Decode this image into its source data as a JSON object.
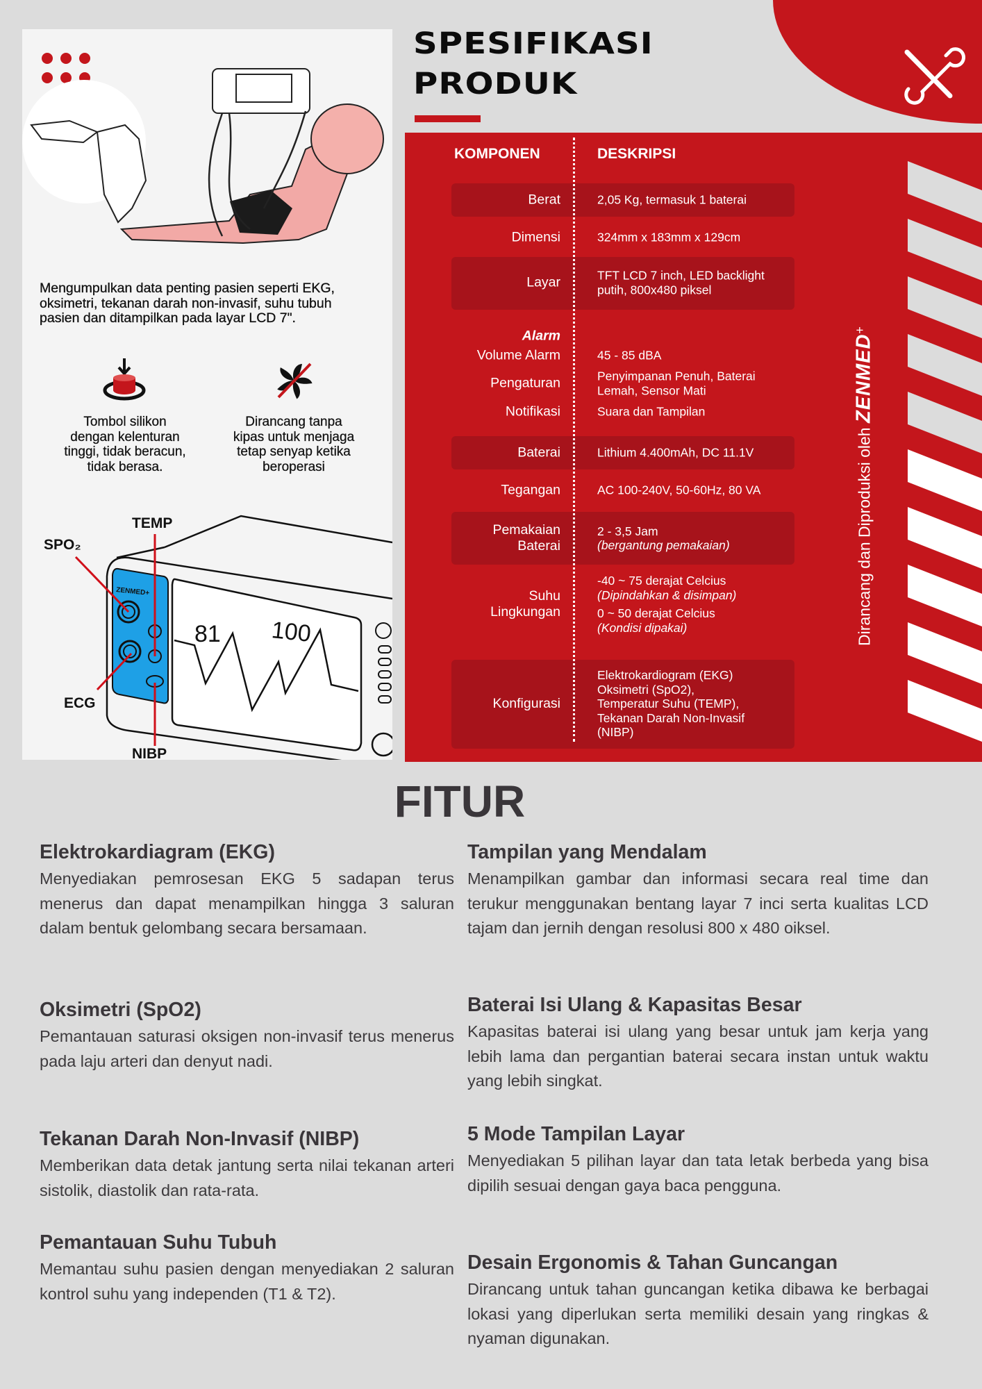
{
  "left_panel": {
    "intro": "Mengumpulkan data penting pasien seperti EKG, oksimetri, tekanan darah non-invasif, suhu tubuh pasien dan ditampilkan pada layar LCD 7\".",
    "highlights": [
      {
        "icon": "silicone-button-icon",
        "label": "Tombol silikon\ndengan kelenturan\ntinggi, tidak beracun,\ntidak berasa."
      },
      {
        "icon": "no-fan-icon",
        "label": "Dirancang tanpa\nkipas untuk menjaga\ntetap senyap ketika\nberoperasi"
      }
    ],
    "diagram": {
      "labels": {
        "temp": "TEMP",
        "spo2": "SPO₂",
        "ecg": "ECG",
        "nibp": "NIBP"
      },
      "brand": "ZENMED+",
      "screen_values": [
        "81",
        "100"
      ]
    }
  },
  "specs": {
    "title_line1": "SPESIFIKASI",
    "title_line2": "PRODUK",
    "header_component": "KOMPONEN",
    "header_description": "DESKRIPSI",
    "rows": [
      {
        "label": "Berat",
        "lines": [
          "2,05 Kg, termasuk 1 baterai"
        ]
      },
      {
        "label": "Dimensi",
        "lines": [
          "324mm x 183mm x 129cm"
        ]
      },
      {
        "label": "Layar",
        "lines": [
          "TFT LCD 7 inch, LED backlight",
          "putih, 800x480 piksel"
        ]
      },
      {
        "label": "Alarm",
        "lines": []
      },
      {
        "label": "Volume Alarm",
        "lines": [
          "45 - 85 dBA"
        ]
      },
      {
        "label": "Pengaturan",
        "lines": [
          "Penyimpanan Penuh, Baterai",
          "Lemah, Sensor Mati"
        ]
      },
      {
        "label": "Notifikasi",
        "lines": [
          "Suara dan Tampilan"
        ]
      },
      {
        "label": "Baterai",
        "lines": [
          "Lithium 4.400mAh, DC 11.1V"
        ]
      },
      {
        "label": "Tegangan",
        "lines": [
          "AC 100-240V, 50-60Hz, 80 VA"
        ]
      },
      {
        "label": "Pemakaian\nBaterai",
        "lines": [
          "2 - 3,5 Jam",
          "(bergantung pemakaian)"
        ]
      },
      {
        "label": "Suhu\nLingkungan",
        "lines": [
          "-40 ~ 75 derajat Celcius",
          "(Dipindahkan & disimpan)",
          "0 ~ 50 derajat Celcius",
          "(Kondisi dipakai)"
        ]
      },
      {
        "label": "Konfigurasi",
        "lines": [
          "Elektrokardiogram (EKG)",
          "Oksimetri (SpO2),",
          "Temperatur Suhu (TEMP),",
          "Tekanan Darah Non-Invasif",
          "(NIBP)"
        ]
      }
    ]
  },
  "side_banner": {
    "text": "Dirancang dan Diproduksi oleh",
    "brand": "ZENMED",
    "brand_mark": "+"
  },
  "features": {
    "title": "FITUR",
    "items": [
      {
        "title": "Elektrokardiagram (EKG)",
        "body": "Menyediakan pemrosesan EKG 5 sadapan terus menerus dan dapat menampilkan hingga 3 saluran dalam bentuk gelombang secara bersamaan."
      },
      {
        "title": "Oksimetri (SpO2)",
        "body": "Pemantauan saturasi oksigen non-invasif terus menerus pada laju arteri dan denyut nadi."
      },
      {
        "title": "Tekanan Darah Non-Invasif (NIBP)",
        "body": "Memberikan data detak jantung serta nilai tekanan arteri sistolik, diastolik dan rata-rata."
      },
      {
        "title": "Pemantauan Suhu Tubuh",
        "body": "Memantau suhu pasien dengan menyediakan 2 saluran kontrol suhu yang independen (T1 & T2)."
      },
      {
        "title": "Tampilan yang Mendalam",
        "body": "Menampilkan gambar dan informasi secara real time dan terukur menggunakan bentang layar 7 inci serta kualitas LCD tajam dan jernih dengan resolusi 800 x 480 oiksel."
      },
      {
        "title": "Baterai Isi Ulang & Kapasitas Besar",
        "body": "Kapasitas baterai isi ulang yang besar untuk jam kerja  yang lebih lama dan pergantian baterai secara instan untuk waktu yang lebih singkat."
      },
      {
        "title": "5 Mode Tampilan Layar",
        "body": "Menyediakan 5 pilihan layar dan tata letak berbeda yang bisa dipilih sesuai dengan gaya baca pengguna."
      },
      {
        "title": "Desain Ergonomis & Tahan Guncangan",
        "body": "Dirancang untuk tahan guncangan ketika dibawa ke berbagai lokasi yang diperlukan serta memiliki desain yang ringkas & nyaman digunakan."
      }
    ]
  },
  "colors": {
    "brand_red": "#c4161c",
    "panel_blue": "#1ea0e6",
    "text_dark": "#3a363a",
    "background": "#dcdcdc"
  }
}
